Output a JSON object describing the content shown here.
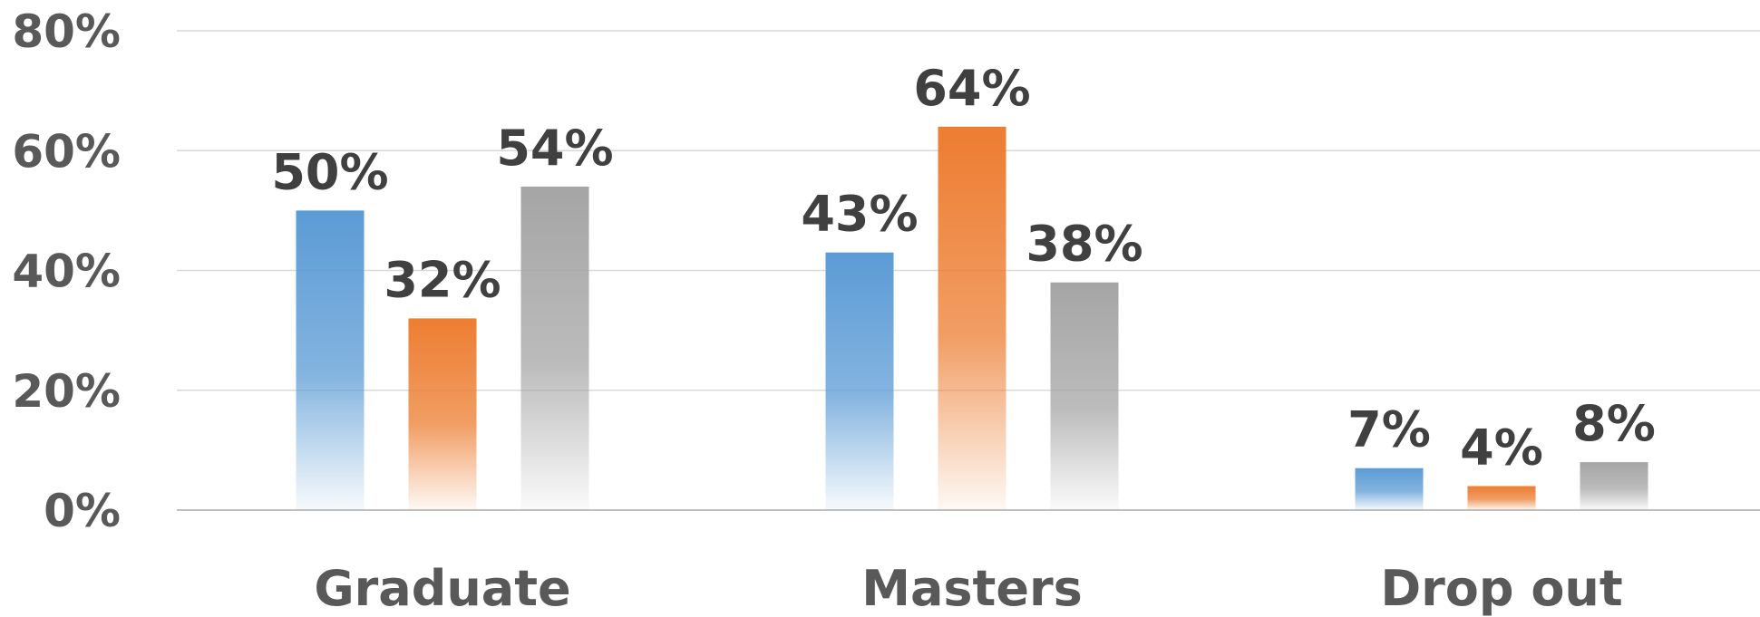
{
  "chart_data": {
    "type": "bar",
    "categories": [
      "Graduate",
      "Masters",
      "Drop out"
    ],
    "series": [
      {
        "values": [
          50,
          43,
          7
        ],
        "labels": [
          "50%",
          "43%",
          "7%"
        ],
        "color": "#5b9bd5"
      },
      {
        "values": [
          32,
          64,
          4
        ],
        "labels": [
          "32%",
          "64%",
          "4%"
        ],
        "color": "#ed7d31"
      },
      {
        "values": [
          54,
          38,
          8
        ],
        "labels": [
          "54%",
          "38%",
          "8%"
        ],
        "color": "#a5a5a5"
      }
    ],
    "yticks": [
      "0%",
      "20%",
      "40%",
      "60%",
      "80%"
    ],
    "ylim": [
      0,
      80
    ],
    "grid": true,
    "legend": "none",
    "title": "",
    "xlabel": "",
    "ylabel": ""
  }
}
